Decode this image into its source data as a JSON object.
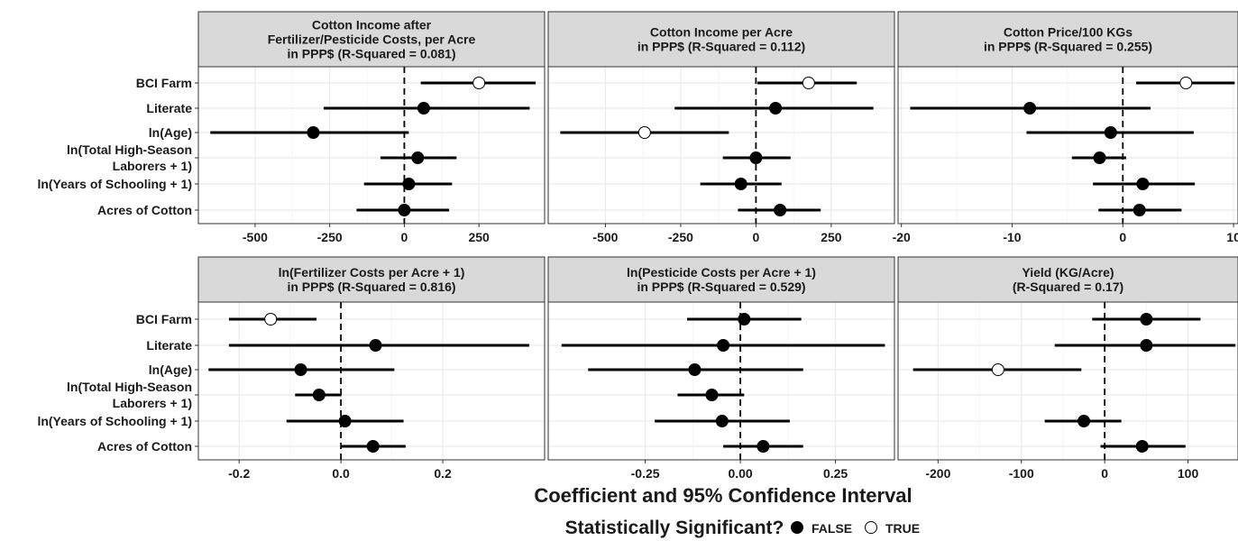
{
  "colors": {
    "significant_false": "#000000",
    "significant_true": "#ffffff",
    "strip": "#d9d9d9",
    "grid": "#ebebeb"
  },
  "xlabel": "Coefficient and 95% Confidence Interval",
  "legend": {
    "title": "Statistically Significant?",
    "items": [
      {
        "label": "FALSE",
        "fill": "#000000"
      },
      {
        "label": "TRUE",
        "fill": "#ffffff"
      }
    ]
  },
  "chart_data": [
    {
      "type": "scatter",
      "title": [
        "Cotton Income after",
        "Fertilizer/Pesticide Costs, per Acre",
        "in PPP$ (R-Squared = 0.081)"
      ],
      "categories": [
        "BCI Farm",
        "Literate",
        "ln(Age)",
        "ln(Total High-Season Laborers + 1)",
        "ln(Years of Schooling + 1)",
        "Acres of Cotton"
      ],
      "xlim": [
        -690,
        470
      ],
      "xticks": [
        -500,
        -250,
        0,
        250
      ],
      "xtick_labels": [
        "-500",
        "-250",
        "0",
        "250"
      ],
      "points": [
        {
          "est": 250,
          "lo": 55,
          "hi": 440,
          "significant": true
        },
        {
          "est": 65,
          "lo": -270,
          "hi": 420,
          "significant": false
        },
        {
          "est": -305,
          "lo": -650,
          "hi": 15,
          "significant": false
        },
        {
          "est": 45,
          "lo": -80,
          "hi": 175,
          "significant": false
        },
        {
          "est": 15,
          "lo": -135,
          "hi": 160,
          "significant": false
        },
        {
          "est": 0,
          "lo": -160,
          "hi": 150,
          "significant": false
        }
      ]
    },
    {
      "type": "scatter",
      "title": [
        "Cotton Income per Acre",
        "in PPP$ (R-Squared = 0.112)"
      ],
      "categories": [
        "BCI Farm",
        "Literate",
        "ln(Age)",
        "ln(Total High-Season Laborers + 1)",
        "ln(Years of Schooling + 1)",
        "Acres of Cotton"
      ],
      "xlim": [
        -690,
        460
      ],
      "xticks": [
        -500,
        -250,
        0,
        250
      ],
      "xtick_labels": [
        "-500",
        "-250",
        "0",
        "250"
      ],
      "points": [
        {
          "est": 175,
          "lo": 5,
          "hi": 335,
          "significant": true
        },
        {
          "est": 65,
          "lo": -270,
          "hi": 390,
          "significant": false
        },
        {
          "est": -370,
          "lo": -650,
          "hi": -90,
          "significant": true
        },
        {
          "est": 0,
          "lo": -110,
          "hi": 115,
          "significant": false
        },
        {
          "est": -50,
          "lo": -185,
          "hi": 85,
          "significant": false
        },
        {
          "est": 80,
          "lo": -60,
          "hi": 215,
          "significant": false
        }
      ]
    },
    {
      "type": "scatter",
      "title": [
        "Cotton Price/100 KGs",
        "in PPP$ (R-Squared = 0.255)"
      ],
      "categories": [
        "BCI Farm",
        "Literate",
        "ln(Age)",
        "ln(Total High-Season Laborers + 1)",
        "ln(Years of Schooling + 1)",
        "Acres of Cotton"
      ],
      "xlim": [
        -20.3,
        10.4
      ],
      "xticks": [
        -20,
        -10,
        0,
        10
      ],
      "xtick_labels": [
        "-20",
        "-10",
        "0",
        "10"
      ],
      "points": [
        {
          "est": 5.7,
          "lo": 1.2,
          "hi": 10.1,
          "significant": true
        },
        {
          "est": -8.4,
          "lo": -19.2,
          "hi": 2.5,
          "significant": false
        },
        {
          "est": -1.1,
          "lo": -8.7,
          "hi": 6.4,
          "significant": false
        },
        {
          "est": -2.1,
          "lo": -4.6,
          "hi": 0.3,
          "significant": false
        },
        {
          "est": 1.8,
          "lo": -2.7,
          "hi": 6.5,
          "significant": false
        },
        {
          "est": 1.5,
          "lo": -2.2,
          "hi": 5.3,
          "significant": false
        }
      ]
    },
    {
      "type": "scatter",
      "title": [
        "ln(Fertilizer Costs per Acre + 1)",
        "in PPP$ (R-Squared = 0.816)"
      ],
      "categories": [
        "BCI Farm",
        "Literate",
        "ln(Age)",
        "ln(Total High-Season Laborers + 1)",
        "ln(Years of Schooling + 1)",
        "Acres of Cotton"
      ],
      "xlim": [
        -0.28,
        0.4
      ],
      "xticks": [
        -0.2,
        0,
        0.2
      ],
      "xtick_labels": [
        "-0.2",
        "0.0",
        "0.2"
      ],
      "points": [
        {
          "est": -0.138,
          "lo": -0.22,
          "hi": -0.048,
          "significant": true
        },
        {
          "est": 0.068,
          "lo": -0.22,
          "hi": 0.37,
          "significant": false
        },
        {
          "est": -0.079,
          "lo": -0.26,
          "hi": 0.105,
          "significant": false
        },
        {
          "est": -0.043,
          "lo": -0.09,
          "hi": 0.001,
          "significant": false
        },
        {
          "est": 0.008,
          "lo": -0.107,
          "hi": 0.123,
          "significant": false
        },
        {
          "est": 0.063,
          "lo": 0.0,
          "hi": 0.127,
          "significant": false
        }
      ]
    },
    {
      "type": "scatter",
      "title": [
        "ln(Pesticide Costs per Acre + 1)",
        "in PPP$ (R-Squared = 0.529)"
      ],
      "categories": [
        "BCI Farm",
        "Literate",
        "ln(Age)",
        "ln(Total High-Season Laborers + 1)",
        "ln(Years of Schooling + 1)",
        "Acres of Cotton"
      ],
      "xlim": [
        -0.505,
        0.405
      ],
      "xticks": [
        -0.25,
        0,
        0.25
      ],
      "xtick_labels": [
        "-0.25",
        "0.00",
        "0.25"
      ],
      "points": [
        {
          "est": 0.01,
          "lo": -0.14,
          "hi": 0.16,
          "significant": false
        },
        {
          "est": -0.045,
          "lo": -0.47,
          "hi": 0.38,
          "significant": false
        },
        {
          "est": -0.12,
          "lo": -0.4,
          "hi": 0.165,
          "significant": false
        },
        {
          "est": -0.075,
          "lo": -0.165,
          "hi": 0.01,
          "significant": false
        },
        {
          "est": -0.048,
          "lo": -0.225,
          "hi": 0.13,
          "significant": false
        },
        {
          "est": 0.06,
          "lo": -0.045,
          "hi": 0.165,
          "significant": false
        }
      ]
    },
    {
      "type": "scatter",
      "title": [
        "Yield (KG/Acre)",
        "(R-Squared = 0.17)"
      ],
      "categories": [
        "BCI Farm",
        "Literate",
        "ln(Age)",
        "ln(Total High-Season Laborers + 1)",
        "ln(Years of Schooling + 1)",
        "Acres of Cotton"
      ],
      "xlim": [
        -248,
        160
      ],
      "xticks": [
        -200,
        -100,
        0,
        100
      ],
      "xtick_labels": [
        "-200",
        "-100",
        "0",
        "100"
      ],
      "points": [
        {
          "est": 50,
          "lo": -15,
          "hi": 115,
          "significant": false
        },
        {
          "est": 50,
          "lo": -60,
          "hi": 157,
          "significant": false
        },
        {
          "est": -128,
          "lo": -230,
          "hi": -28,
          "significant": true
        },
        {
          "est": null,
          "lo": null,
          "hi": null,
          "significant": false
        },
        {
          "est": -25,
          "lo": -72,
          "hi": 20,
          "significant": false
        },
        {
          "est": 45,
          "lo": -5,
          "hi": 97,
          "significant": false
        }
      ]
    }
  ]
}
